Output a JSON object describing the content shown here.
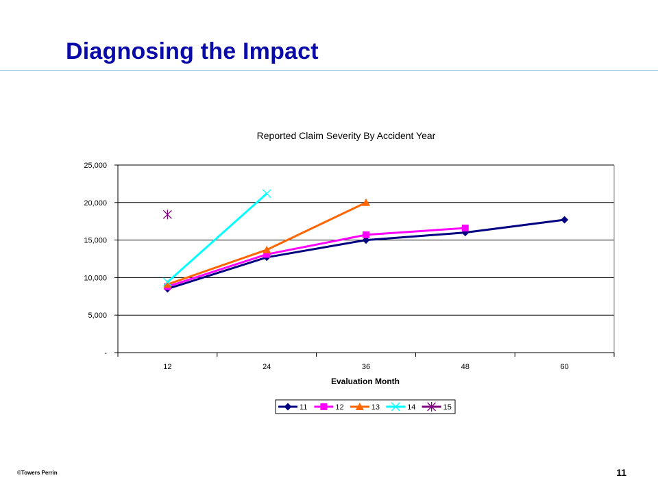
{
  "slide": {
    "title": "Diagnosing the Impact",
    "footer": "©Towers Perrin",
    "page_number": "11"
  },
  "colors": {
    "title": "#0a0aa8",
    "rule": "#7fb3d8"
  },
  "chart_data": {
    "type": "line",
    "title": "Reported Claim Severity By Accident Year",
    "xlabel": "Evaluation Month",
    "ylabel": "",
    "categories": [
      "12",
      "24",
      "36",
      "48",
      "60"
    ],
    "ylim": [
      0,
      25000
    ],
    "yticks": [
      {
        "value": 0,
        "label": "-"
      },
      {
        "value": 5000,
        "label": "5,000"
      },
      {
        "value": 10000,
        "label": "10,000"
      },
      {
        "value": 15000,
        "label": "15,000"
      },
      {
        "value": 20000,
        "label": "20,000"
      },
      {
        "value": 25000,
        "label": "25,000"
      }
    ],
    "grid": "horizontal",
    "legend_position": "bottom",
    "series": [
      {
        "name": "11",
        "color": "#000080",
        "marker": "diamond",
        "values": [
          8500,
          12700,
          15000,
          16000,
          17700
        ]
      },
      {
        "name": "12",
        "color": "#ff00ff",
        "marker": "square",
        "values": [
          8800,
          13100,
          15700,
          16600,
          null
        ]
      },
      {
        "name": "13",
        "color": "#ff6600",
        "marker": "triangle",
        "values": [
          9100,
          13700,
          20000,
          null,
          null
        ]
      },
      {
        "name": "14",
        "color": "#00ffff",
        "marker": "x",
        "values": [
          9400,
          21200,
          null,
          null,
          null
        ]
      },
      {
        "name": "15",
        "color": "#800080",
        "marker": "star",
        "values": [
          18400,
          null,
          null,
          null,
          null
        ]
      }
    ]
  }
}
